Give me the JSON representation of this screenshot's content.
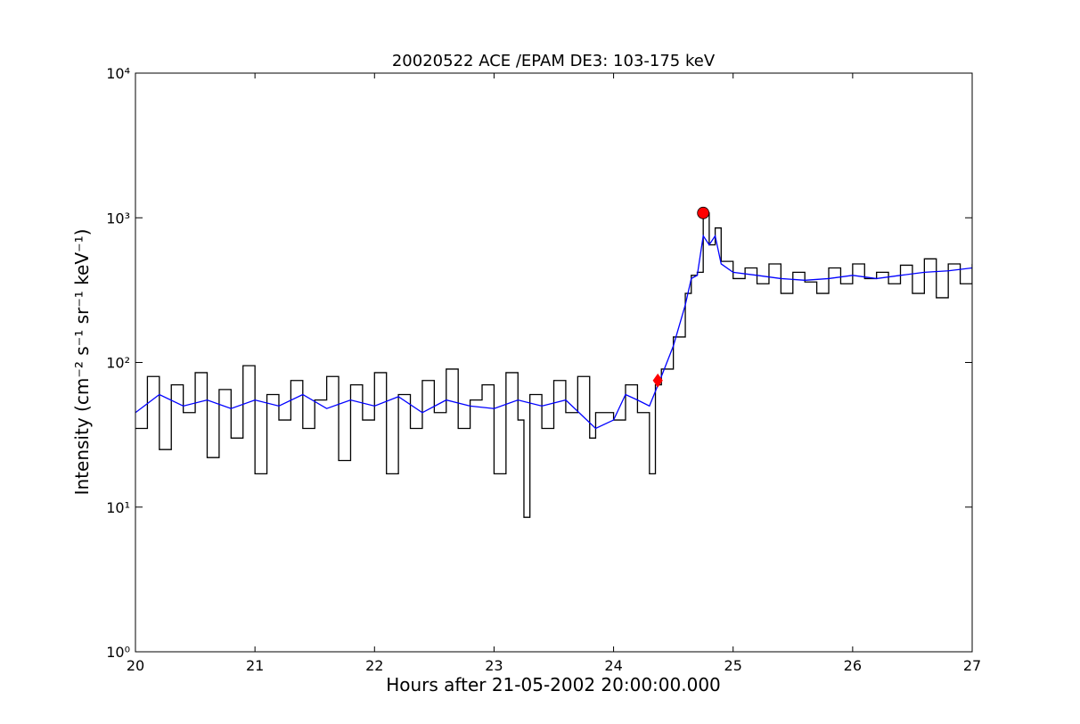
{
  "chart_data": {
    "type": "line",
    "title": "20020522 ACE /EPAM DE3: 103-175 keV",
    "x_label": "Hours after 21-05-2002 20:00:00.000",
    "y_label": "Intensity (cm⁻² s⁻¹ sr⁻¹ keV⁻¹)",
    "yscale": "log",
    "xlim": [
      20,
      27
    ],
    "ylim": [
      1,
      10000
    ],
    "xticks": [
      20,
      21,
      22,
      23,
      24,
      25,
      26,
      27
    ],
    "yticks": [
      {
        "value": 1,
        "label": "10⁰"
      },
      {
        "value": 10,
        "label": "10¹"
      },
      {
        "value": 100,
        "label": "10²"
      },
      {
        "value": 1000,
        "label": "10³"
      },
      {
        "value": 10000,
        "label": "10⁴"
      }
    ],
    "series": [
      {
        "color": "#000000",
        "drawstyle": "steps",
        "x": [
          20.0,
          20.1,
          20.2,
          20.3,
          20.4,
          20.5,
          20.6,
          20.7,
          20.8,
          20.9,
          21.0,
          21.1,
          21.2,
          21.3,
          21.4,
          21.5,
          21.6,
          21.7,
          21.8,
          21.9,
          22.0,
          22.1,
          22.2,
          22.3,
          22.4,
          22.5,
          22.6,
          22.7,
          22.8,
          22.9,
          23.0,
          23.1,
          23.2,
          23.25,
          23.3,
          23.4,
          23.5,
          23.6,
          23.7,
          23.8,
          23.85,
          24.0,
          24.1,
          24.2,
          24.3,
          24.35,
          24.4,
          24.5,
          24.6,
          24.65,
          24.7,
          24.75,
          24.8,
          24.85,
          24.9,
          25.0,
          25.1,
          25.2,
          25.3,
          25.4,
          25.5,
          25.6,
          25.7,
          25.8,
          25.9,
          26.0,
          26.1,
          26.2,
          26.3,
          26.4,
          26.5,
          26.6,
          26.7,
          26.8,
          26.9,
          27.0
        ],
        "values": [
          35,
          80,
          25,
          70,
          45,
          85,
          22,
          65,
          30,
          95,
          17,
          60,
          40,
          75,
          35,
          55,
          80,
          21,
          70,
          40,
          85,
          17,
          60,
          35,
          75,
          45,
          90,
          35,
          55,
          70,
          17,
          85,
          40,
          8.5,
          60,
          35,
          75,
          45,
          80,
          30,
          45,
          40,
          70,
          45,
          17,
          70,
          90,
          150,
          300,
          400,
          420,
          1080,
          650,
          850,
          500,
          380,
          450,
          350,
          480,
          300,
          420,
          360,
          300,
          450,
          350,
          480,
          380,
          420,
          350,
          470,
          300,
          520,
          280,
          480,
          350,
          480
        ]
      },
      {
        "color": "#0000ff",
        "drawstyle": "default",
        "x": [
          20.0,
          20.2,
          20.4,
          20.6,
          20.8,
          21.0,
          21.2,
          21.4,
          21.6,
          21.8,
          22.0,
          22.2,
          22.4,
          22.6,
          22.8,
          23.0,
          23.2,
          23.4,
          23.6,
          23.85,
          24.0,
          24.1,
          24.2,
          24.3,
          24.4,
          24.5,
          24.6,
          24.65,
          24.7,
          24.75,
          24.8,
          24.85,
          24.9,
          25.0,
          25.2,
          25.4,
          25.6,
          25.8,
          26.0,
          26.2,
          26.4,
          26.6,
          26.8,
          27.0
        ],
        "values": [
          45,
          60,
          50,
          55,
          48,
          55,
          50,
          60,
          48,
          55,
          50,
          58,
          45,
          55,
          50,
          48,
          55,
          50,
          55,
          35,
          40,
          60,
          55,
          50,
          80,
          130,
          250,
          380,
          400,
          750,
          650,
          750,
          480,
          420,
          400,
          380,
          370,
          380,
          400,
          380,
          400,
          420,
          430,
          450
        ]
      }
    ],
    "points": [
      {
        "x": 24.37,
        "y": 75,
        "color": "#ff0000",
        "marker": "diamond"
      },
      {
        "x": 24.75,
        "y": 1080,
        "color": "#ff0000",
        "marker": "circle"
      }
    ]
  }
}
